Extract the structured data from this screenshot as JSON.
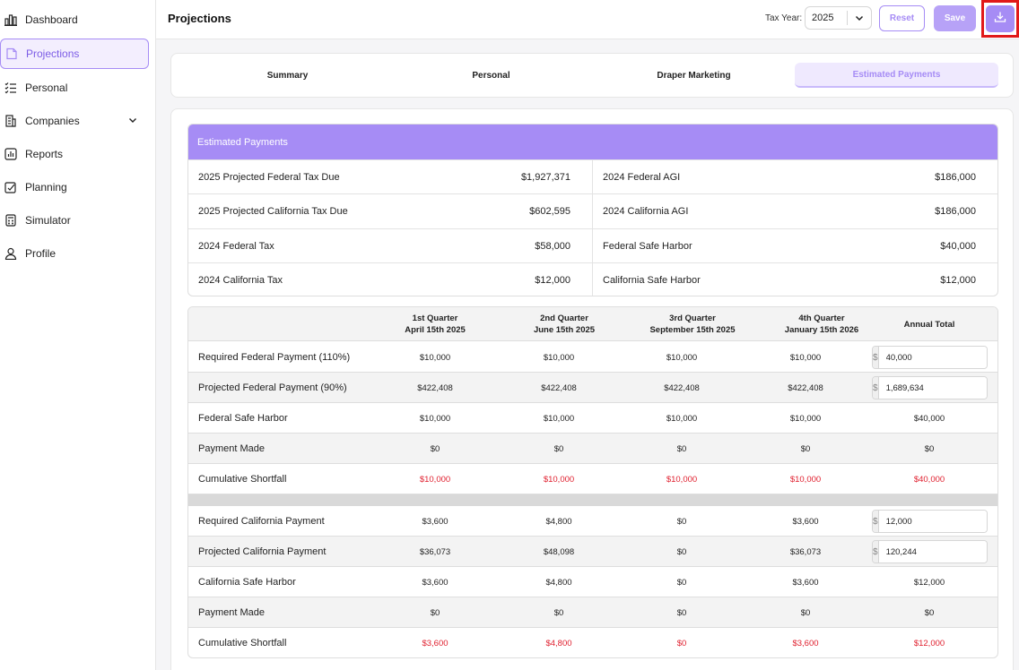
{
  "sidebar": {
    "items": [
      {
        "label": "Dashboard",
        "icon": "bar-chart-icon"
      },
      {
        "label": "Projections",
        "icon": "document-icon"
      },
      {
        "label": "Personal",
        "icon": "checklist-icon"
      },
      {
        "label": "Companies",
        "icon": "building-icon"
      },
      {
        "label": "Reports",
        "icon": "reports-icon"
      },
      {
        "label": "Planning",
        "icon": "planning-icon"
      },
      {
        "label": "Simulator",
        "icon": "calculator-icon"
      },
      {
        "label": "Profile",
        "icon": "user-icon"
      }
    ]
  },
  "header": {
    "title": "Projections",
    "tax_year_label": "Tax Year:",
    "tax_year_value": "2025",
    "reset_label": "Reset",
    "save_label": "Save",
    "accent": "#a68cf5"
  },
  "tabs": [
    "Summary",
    "Personal",
    "Draper Marketing",
    "Estimated Payments"
  ],
  "summary": {
    "heading": "Estimated Payments",
    "rows": [
      {
        "l_label": "2025 Projected Federal Tax Due",
        "l_value": "$1,927,371",
        "r_label": "2024 Federal AGI",
        "r_value": "$186,000"
      },
      {
        "l_label": "2025 Projected California Tax Due",
        "l_value": "$602,595",
        "r_label": "2024 California AGI",
        "r_value": "$186,000"
      },
      {
        "l_label": "2024 Federal Tax",
        "l_value": "$58,000",
        "r_label": "Federal Safe Harbor",
        "r_value": "$40,000"
      },
      {
        "l_label": "2024 California Tax",
        "l_value": "$12,000",
        "r_label": "California Safe Harbor",
        "r_value": "$12,000"
      }
    ]
  },
  "quarters": {
    "headers": [
      {
        "line1": "1st Quarter",
        "line2": "April 15th 2025"
      },
      {
        "line1": "2nd Quarter",
        "line2": "June 15th 2025"
      },
      {
        "line1": "3rd Quarter",
        "line2": "September 15th 2025"
      },
      {
        "line1": "4th Quarter",
        "line2": "January 15th 2026"
      },
      {
        "line1": "Annual Total",
        "line2": ""
      }
    ],
    "currency_symbol": "$",
    "federal": [
      {
        "label": "Required Federal Payment (110%)",
        "values": [
          "$10,000",
          "$10,000",
          "$10,000",
          "$10,000"
        ],
        "annual_input": "40,000"
      },
      {
        "label": "Projected Federal Payment (90%)",
        "values": [
          "$422,408",
          "$422,408",
          "$422,408",
          "$422,408"
        ],
        "annual_input": "1,689,634"
      },
      {
        "label": "Federal Safe Harbor",
        "values": [
          "$10,000",
          "$10,000",
          "$10,000",
          "$10,000"
        ],
        "annual": "$40,000"
      },
      {
        "label": "Payment Made",
        "values": [
          "$0",
          "$0",
          "$0",
          "$0"
        ],
        "annual": "$0"
      },
      {
        "label": "Cumulative Shortfall",
        "values": [
          "$10,000",
          "$10,000",
          "$10,000",
          "$10,000"
        ],
        "annual": "$40,000"
      }
    ],
    "california": [
      {
        "label": "Required California Payment",
        "values": [
          "$3,600",
          "$4,800",
          "$0",
          "$3,600"
        ],
        "annual_input": "12,000"
      },
      {
        "label": "Projected California Payment",
        "values": [
          "$36,073",
          "$48,098",
          "$0",
          "$36,073"
        ],
        "annual_input": "120,244"
      },
      {
        "label": "California Safe Harbor",
        "values": [
          "$3,600",
          "$4,800",
          "$0",
          "$3,600"
        ],
        "annual": "$12,000"
      },
      {
        "label": "Payment Made",
        "values": [
          "$0",
          "$0",
          "$0",
          "$0"
        ],
        "annual": "$0"
      },
      {
        "label": "Cumulative Shortfall",
        "values": [
          "$3,600",
          "$4,800",
          "$0",
          "$3,600"
        ],
        "annual": "$12,000"
      }
    ],
    "shortfall_color": "#e0202f"
  }
}
